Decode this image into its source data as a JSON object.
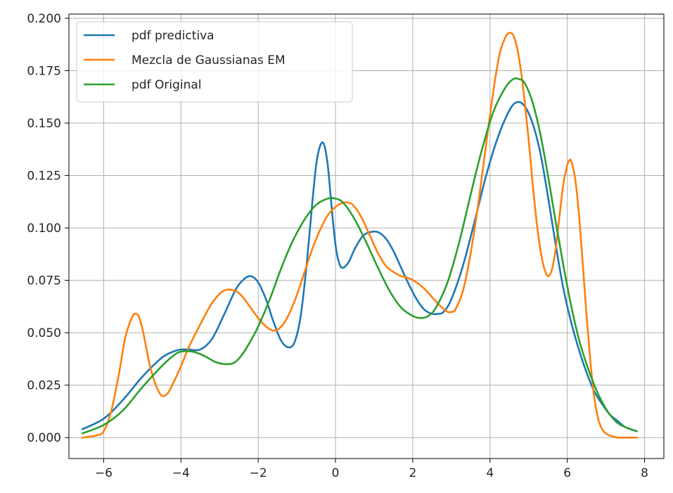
{
  "chart_data": {
    "type": "line",
    "title": "",
    "xlabel": "",
    "ylabel": "",
    "xlim": [
      -6.9,
      8.5
    ],
    "ylim": [
      -0.01,
      0.202
    ],
    "x_ticks": [
      -6,
      -4,
      -2,
      0,
      2,
      4,
      6,
      8
    ],
    "x_tick_labels": [
      "−6",
      "−4",
      "−2",
      "0",
      "2",
      "4",
      "6",
      "8"
    ],
    "y_ticks": [
      0.0,
      0.025,
      0.05,
      0.075,
      0.1,
      0.125,
      0.15,
      0.175,
      0.2
    ],
    "y_tick_labels": [
      "0.000",
      "0.025",
      "0.050",
      "0.075",
      "0.100",
      "0.125",
      "0.150",
      "0.175",
      "0.200"
    ],
    "grid": true,
    "legend_position": "top-left",
    "series": [
      {
        "name": "pdf predictiva",
        "color": "#1f77b4",
        "x": [
          -6.55,
          -6.0,
          -5.5,
          -5.0,
          -4.5,
          -4.2,
          -4.0,
          -3.8,
          -3.5,
          -3.2,
          -2.9,
          -2.6,
          -2.4,
          -2.2,
          -2.0,
          -1.8,
          -1.6,
          -1.4,
          -1.2,
          -1.05,
          -0.9,
          -0.75,
          -0.6,
          -0.5,
          -0.4,
          -0.3,
          -0.2,
          -0.1,
          0.0,
          0.1,
          0.2,
          0.35,
          0.5,
          0.7,
          0.9,
          1.1,
          1.3,
          1.5,
          1.7,
          1.9,
          2.1,
          2.3,
          2.5,
          2.65,
          2.8,
          3.0,
          3.3,
          3.6,
          3.9,
          4.2,
          4.5,
          4.7,
          4.9,
          5.1,
          5.3,
          5.5,
          5.7,
          5.9,
          6.1,
          6.3,
          6.5,
          6.7,
          6.9,
          7.1,
          7.3,
          7.5,
          7.8
        ],
        "y": [
          0.004,
          0.009,
          0.018,
          0.029,
          0.038,
          0.041,
          0.042,
          0.042,
          0.042,
          0.047,
          0.058,
          0.07,
          0.075,
          0.077,
          0.074,
          0.066,
          0.055,
          0.046,
          0.043,
          0.046,
          0.058,
          0.082,
          0.112,
          0.13,
          0.139,
          0.14,
          0.13,
          0.11,
          0.092,
          0.083,
          0.081,
          0.084,
          0.09,
          0.096,
          0.098,
          0.098,
          0.095,
          0.089,
          0.081,
          0.073,
          0.066,
          0.061,
          0.059,
          0.059,
          0.06,
          0.066,
          0.082,
          0.103,
          0.125,
          0.143,
          0.156,
          0.16,
          0.158,
          0.15,
          0.136,
          0.115,
          0.092,
          0.071,
          0.055,
          0.042,
          0.031,
          0.022,
          0.016,
          0.011,
          0.008,
          0.005,
          0.003
        ]
      },
      {
        "name": "Mezcla de Gaussianas EM",
        "color": "#ff7f0e",
        "x": [
          -6.55,
          -6.2,
          -6.0,
          -5.8,
          -5.6,
          -5.45,
          -5.3,
          -5.2,
          -5.1,
          -5.0,
          -4.9,
          -4.8,
          -4.65,
          -4.5,
          -4.35,
          -4.2,
          -4.0,
          -3.8,
          -3.5,
          -3.2,
          -2.9,
          -2.6,
          -2.4,
          -2.2,
          -2.0,
          -1.8,
          -1.6,
          -1.4,
          -1.2,
          -1.0,
          -0.8,
          -0.6,
          -0.4,
          -0.2,
          0.0,
          0.2,
          0.35,
          0.5,
          0.7,
          0.9,
          1.1,
          1.3,
          1.5,
          1.7,
          1.9,
          2.1,
          2.3,
          2.5,
          2.7,
          2.9,
          3.0,
          3.1,
          3.3,
          3.5,
          3.7,
          3.9,
          4.1,
          4.25,
          4.4,
          4.5,
          4.6,
          4.7,
          4.8,
          4.9,
          5.0,
          5.1,
          5.2,
          5.3,
          5.4,
          5.5,
          5.6,
          5.7,
          5.8,
          5.9,
          6.0,
          6.05,
          6.1,
          6.2,
          6.3,
          6.4,
          6.5,
          6.6,
          6.7,
          6.8,
          6.9,
          7.0,
          7.1,
          7.3,
          7.5,
          7.8
        ],
        "y": [
          0.0,
          0.001,
          0.003,
          0.013,
          0.031,
          0.047,
          0.056,
          0.059,
          0.058,
          0.052,
          0.043,
          0.034,
          0.025,
          0.02,
          0.021,
          0.026,
          0.034,
          0.043,
          0.054,
          0.064,
          0.07,
          0.07,
          0.067,
          0.062,
          0.057,
          0.053,
          0.051,
          0.053,
          0.059,
          0.068,
          0.079,
          0.09,
          0.099,
          0.106,
          0.11,
          0.112,
          0.112,
          0.11,
          0.104,
          0.096,
          0.088,
          0.082,
          0.079,
          0.077,
          0.076,
          0.074,
          0.071,
          0.067,
          0.063,
          0.06,
          0.06,
          0.061,
          0.07,
          0.088,
          0.112,
          0.14,
          0.167,
          0.183,
          0.191,
          0.193,
          0.192,
          0.186,
          0.175,
          0.16,
          0.142,
          0.122,
          0.104,
          0.09,
          0.081,
          0.077,
          0.08,
          0.09,
          0.106,
          0.121,
          0.13,
          0.132,
          0.132,
          0.124,
          0.107,
          0.083,
          0.058,
          0.036,
          0.019,
          0.009,
          0.004,
          0.002,
          0.001,
          0.0,
          0.0,
          0.0
        ]
      },
      {
        "name": "pdf Original",
        "color": "#2ca02c",
        "x": [
          -6.55,
          -6.0,
          -5.5,
          -5.0,
          -4.5,
          -4.2,
          -4.0,
          -3.7,
          -3.4,
          -3.1,
          -2.8,
          -2.6,
          -2.4,
          -2.2,
          -2.0,
          -1.7,
          -1.4,
          -1.1,
          -0.8,
          -0.5,
          -0.2,
          0.0,
          0.2,
          0.5,
          0.8,
          1.1,
          1.4,
          1.7,
          2.0,
          2.2,
          2.4,
          2.6,
          2.9,
          3.2,
          3.5,
          3.8,
          4.1,
          4.4,
          4.6,
          4.75,
          4.9,
          5.1,
          5.3,
          5.5,
          5.7,
          5.9,
          6.1,
          6.3,
          6.5,
          6.7,
          6.9,
          7.1,
          7.3,
          7.5,
          7.8
        ],
        "y": [
          0.002,
          0.006,
          0.013,
          0.024,
          0.034,
          0.039,
          0.041,
          0.041,
          0.039,
          0.036,
          0.035,
          0.036,
          0.04,
          0.046,
          0.053,
          0.066,
          0.081,
          0.094,
          0.104,
          0.111,
          0.114,
          0.114,
          0.112,
          0.104,
          0.093,
          0.081,
          0.07,
          0.062,
          0.058,
          0.057,
          0.058,
          0.062,
          0.074,
          0.093,
          0.116,
          0.138,
          0.156,
          0.167,
          0.171,
          0.171,
          0.169,
          0.16,
          0.145,
          0.125,
          0.103,
          0.082,
          0.063,
          0.047,
          0.035,
          0.025,
          0.017,
          0.011,
          0.007,
          0.005,
          0.003
        ]
      }
    ]
  }
}
